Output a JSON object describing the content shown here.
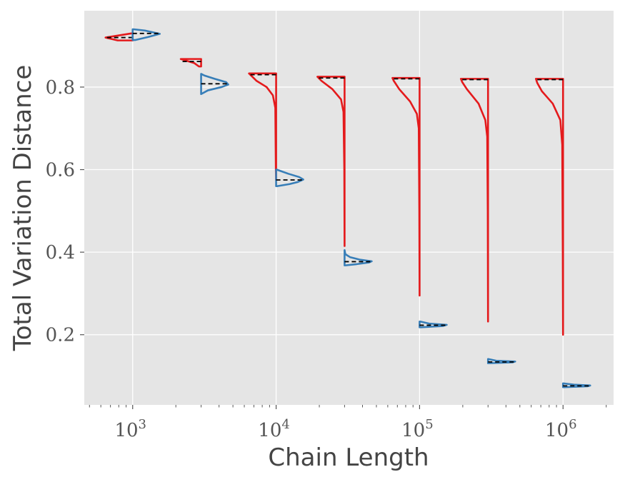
{
  "chart_data": {
    "type": "violin",
    "title": "",
    "xlabel": "Chain Length",
    "ylabel": "Total Variation Distance",
    "xscale": "log",
    "xlim": [
      460,
      2250000
    ],
    "ylim": [
      0.03,
      0.985
    ],
    "grid": true,
    "background": "#e5e5e5",
    "x_ticks": [
      {
        "value": 1000,
        "base": "10",
        "exp": "3"
      },
      {
        "value": 10000,
        "base": "10",
        "exp": "4"
      },
      {
        "value": 100000,
        "base": "10",
        "exp": "5"
      },
      {
        "value": 1000000,
        "base": "10",
        "exp": "6"
      }
    ],
    "y_ticks": [
      {
        "value": 0.2,
        "label": "0.2"
      },
      {
        "value": 0.4,
        "label": "0.4"
      },
      {
        "value": 0.6,
        "label": "0.6"
      },
      {
        "value": 0.8,
        "label": "0.8"
      }
    ],
    "chain_lengths": [
      1000,
      3000,
      10000,
      30000,
      100000,
      300000,
      1000000
    ],
    "series": [
      {
        "color": "#e41a1c",
        "side": "left",
        "violins": [
          {
            "x": 1000,
            "min": 0.913,
            "max": 0.93,
            "median": 0.92,
            "profile": [
              [
                0.913,
                0.55
              ],
              [
                0.92,
                1.0
              ],
              [
                0.93,
                0.05
              ]
            ]
          },
          {
            "x": 3000,
            "min": 0.85,
            "max": 0.868,
            "median": 0.862,
            "profile": [
              [
                0.85,
                0.08
              ],
              [
                0.858,
                0.25
              ],
              [
                0.868,
                0.75
              ]
            ]
          },
          {
            "x": 10000,
            "min": 0.575,
            "max": 0.833,
            "median": 0.83,
            "profile": [
              [
                0.575,
                0.0
              ],
              [
                0.6,
                0.01
              ],
              [
                0.75,
                0.03
              ],
              [
                0.78,
                0.12
              ],
              [
                0.8,
                0.35
              ],
              [
                0.815,
                0.72
              ],
              [
                0.833,
                1.0
              ]
            ]
          },
          {
            "x": 30000,
            "min": 0.415,
            "max": 0.825,
            "median": 0.822,
            "profile": [
              [
                0.415,
                0.0
              ],
              [
                0.6,
                0.01
              ],
              [
                0.74,
                0.04
              ],
              [
                0.77,
                0.13
              ],
              [
                0.795,
                0.45
              ],
              [
                0.815,
                0.85
              ],
              [
                0.825,
                1.0
              ]
            ]
          },
          {
            "x": 100000,
            "min": 0.295,
            "max": 0.822,
            "median": 0.82,
            "profile": [
              [
                0.295,
                0.0
              ],
              [
                0.5,
                0.01
              ],
              [
                0.7,
                0.03
              ],
              [
                0.735,
                0.1
              ],
              [
                0.765,
                0.35
              ],
              [
                0.795,
                0.75
              ],
              [
                0.815,
                0.95
              ],
              [
                0.822,
                1.0
              ]
            ]
          },
          {
            "x": 300000,
            "min": 0.232,
            "max": 0.82,
            "median": 0.818,
            "profile": [
              [
                0.232,
                0.0
              ],
              [
                0.5,
                0.01
              ],
              [
                0.68,
                0.03
              ],
              [
                0.72,
                0.1
              ],
              [
                0.76,
                0.35
              ],
              [
                0.795,
                0.78
              ],
              [
                0.812,
                0.95
              ],
              [
                0.82,
                1.0
              ]
            ]
          },
          {
            "x": 1000000,
            "min": 0.2,
            "max": 0.82,
            "median": 0.818,
            "profile": [
              [
                0.2,
                0.0
              ],
              [
                0.4,
                0.01
              ],
              [
                0.66,
                0.03
              ],
              [
                0.72,
                0.1
              ],
              [
                0.76,
                0.38
              ],
              [
                0.79,
                0.78
              ],
              [
                0.81,
                0.95
              ],
              [
                0.82,
                1.0
              ]
            ]
          }
        ]
      },
      {
        "color": "#377eb8",
        "side": "right",
        "violins": [
          {
            "x": 1000,
            "min": 0.914,
            "max": 0.94,
            "median": 0.93,
            "profile": [
              [
                0.914,
                0.1
              ],
              [
                0.921,
                0.55
              ],
              [
                0.929,
                1.0
              ],
              [
                0.937,
                0.45
              ],
              [
                0.94,
                0.03
              ]
            ]
          },
          {
            "x": 3000,
            "min": 0.783,
            "max": 0.832,
            "median": 0.808,
            "profile": [
              [
                0.783,
                0.0
              ],
              [
                0.792,
                0.25
              ],
              [
                0.8,
                0.75
              ],
              [
                0.806,
                1.0
              ],
              [
                0.812,
                0.92
              ],
              [
                0.82,
                0.5
              ],
              [
                0.828,
                0.12
              ],
              [
                0.832,
                0.0
              ]
            ]
          },
          {
            "x": 10000,
            "min": 0.56,
            "max": 0.6,
            "median": 0.575,
            "profile": [
              [
                0.56,
                0.05
              ],
              [
                0.565,
                0.5
              ],
              [
                0.57,
                0.8
              ],
              [
                0.576,
                1.0
              ],
              [
                0.582,
                0.85
              ],
              [
                0.59,
                0.45
              ],
              [
                0.597,
                0.15
              ],
              [
                0.6,
                0.02
              ]
            ]
          },
          {
            "x": 30000,
            "min": 0.368,
            "max": 0.405,
            "median": 0.377,
            "profile": [
              [
                0.368,
                0.03
              ],
              [
                0.371,
                0.45
              ],
              [
                0.375,
                0.9
              ],
              [
                0.378,
                1.0
              ],
              [
                0.382,
                0.55
              ],
              [
                0.388,
                0.2
              ],
              [
                0.395,
                0.03
              ],
              [
                0.405,
                0.0
              ]
            ]
          },
          {
            "x": 100000,
            "min": 0.218,
            "max": 0.232,
            "median": 0.223,
            "profile": [
              [
                0.218,
                0.05
              ],
              [
                0.221,
                0.85
              ],
              [
                0.224,
                1.0
              ],
              [
                0.227,
                0.35
              ],
              [
                0.232,
                0.02
              ]
            ]
          },
          {
            "x": 300000,
            "min": 0.131,
            "max": 0.141,
            "median": 0.134,
            "profile": [
              [
                0.131,
                0.05
              ],
              [
                0.133,
                0.9
              ],
              [
                0.135,
                1.0
              ],
              [
                0.137,
                0.3
              ],
              [
                0.141,
                0.02
              ]
            ]
          },
          {
            "x": 1000000,
            "min": 0.073,
            "max": 0.082,
            "median": 0.076,
            "profile": [
              [
                0.073,
                0.05
              ],
              [
                0.075,
                0.9
              ],
              [
                0.077,
                1.0
              ],
              [
                0.079,
                0.4
              ],
              [
                0.082,
                0.02
              ]
            ]
          }
        ]
      }
    ]
  }
}
